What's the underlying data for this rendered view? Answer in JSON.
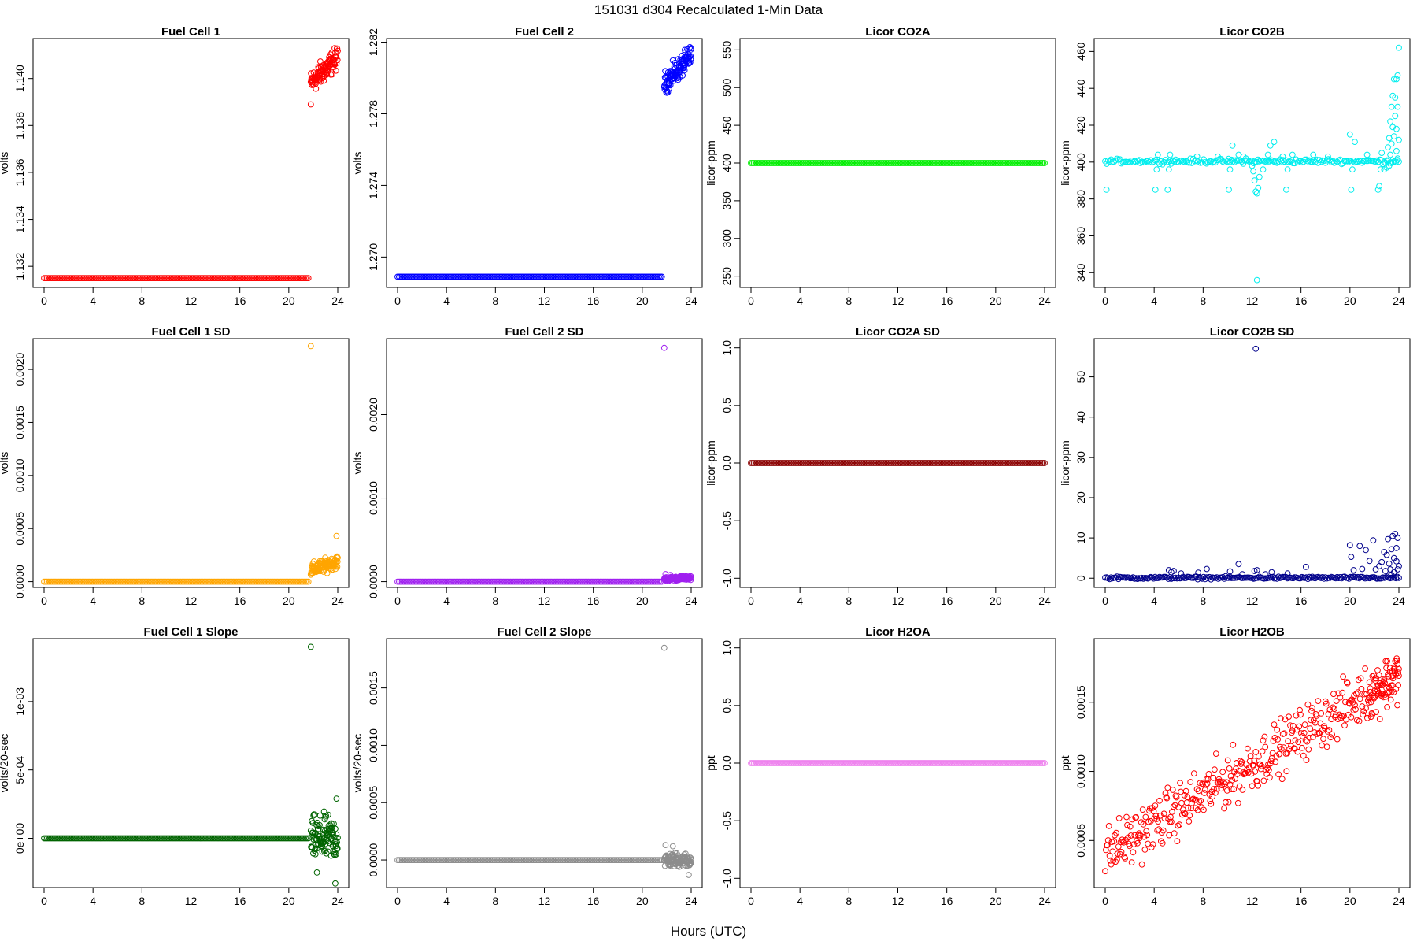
{
  "figure": {
    "title": "151031   d304   Recalculated 1-Min Data",
    "xlabel": "Hours (UTC)"
  },
  "chart_data": [
    {
      "type": "scatter",
      "title": "Fuel Cell 1",
      "ylabel": "volts",
      "color": "#ff0000",
      "xlim": [
        0,
        24
      ],
      "xticks": [
        0,
        4,
        8,
        12,
        16,
        20,
        24
      ],
      "ylim": [
        1.1311,
        1.1417
      ],
      "yticks": [
        1.132,
        1.134,
        1.136,
        1.138,
        1.14
      ],
      "yticklabels": [
        "1.132",
        "1.134",
        "1.136",
        "1.138",
        "1.140"
      ],
      "series": [
        {
          "pattern": "flat",
          "x_range": [
            0,
            21.7
          ],
          "y": 1.1315
        },
        {
          "pattern": "cloud",
          "x_range": [
            21.8,
            24
          ],
          "y_start": 1.1398,
          "y_end": 1.1409,
          "spread": 0.0004,
          "outliers": [
            [
              21.8,
              1.1389
            ]
          ]
        }
      ]
    },
    {
      "type": "scatter",
      "title": "Fuel Cell 2",
      "ylabel": "volts",
      "color": "#0000ff",
      "xlim": [
        0,
        24
      ],
      "xticks": [
        0,
        4,
        8,
        12,
        16,
        20,
        24
      ],
      "ylim": [
        1.2683,
        1.2822
      ],
      "yticks": [
        1.27,
        1.274,
        1.278,
        1.282
      ],
      "yticklabels": [
        "1.270",
        "1.274",
        "1.278",
        "1.282"
      ],
      "series": [
        {
          "pattern": "flat",
          "x_range": [
            0,
            21.7
          ],
          "y": 1.2689
        },
        {
          "pattern": "cloud",
          "x_range": [
            21.8,
            24
          ],
          "y_start": 1.2797,
          "y_end": 1.2812,
          "spread": 0.0005,
          "outliers": []
        }
      ]
    },
    {
      "type": "scatter",
      "title": "Licor CO2A",
      "ylabel": "licor-ppm",
      "color": "#00ee00",
      "xlim": [
        0,
        24
      ],
      "xticks": [
        0,
        4,
        8,
        12,
        16,
        20,
        24
      ],
      "ylim": [
        235,
        565
      ],
      "yticks": [
        250,
        300,
        350,
        400,
        450,
        500,
        550
      ],
      "yticklabels": [
        "250",
        "300",
        "350",
        "400",
        "450",
        "500",
        "550"
      ],
      "series": [
        {
          "pattern": "flat",
          "x_range": [
            0,
            24
          ],
          "y": 400
        }
      ]
    },
    {
      "type": "scatter",
      "title": "Licor CO2B",
      "ylabel": "licor-ppm",
      "color": "#00eeee",
      "xlim": [
        0,
        24
      ],
      "xticks": [
        0,
        4,
        8,
        12,
        16,
        20,
        24
      ],
      "ylim": [
        332,
        467
      ],
      "yticks": [
        340,
        360,
        380,
        400,
        420,
        440,
        460
      ],
      "yticklabels": [
        "340",
        "360",
        "380",
        "400",
        "420",
        "440",
        "460"
      ],
      "series": [
        {
          "pattern": "flat_jitter",
          "x_range": [
            0,
            24
          ],
          "y": 400.5,
          "spread": 0.6,
          "step": 0.12
        },
        {
          "pattern": "points",
          "points": [
            [
              0.1,
              385
            ],
            [
              4.1,
              385
            ],
            [
              4.2,
              396
            ],
            [
              4.3,
              404
            ],
            [
              5.1,
              385
            ],
            [
              5.2,
              396
            ],
            [
              5.3,
              404
            ],
            [
              5.5,
              401
            ],
            [
              7.5,
              403
            ],
            [
              9.2,
              403
            ],
            [
              10.1,
              385
            ],
            [
              10.2,
              396
            ],
            [
              10.4,
              409
            ],
            [
              10.9,
              404
            ],
            [
              11.3,
              403
            ],
            [
              11.5,
              402
            ],
            [
              12.0,
              398
            ],
            [
              12.1,
              395
            ],
            [
              12.2,
              390
            ],
            [
              12.3,
              384
            ],
            [
              12.4,
              383
            ],
            [
              12.5,
              386
            ],
            [
              12.6,
              392
            ],
            [
              12.9,
              396
            ],
            [
              13.3,
              404
            ],
            [
              13.5,
              409
            ],
            [
              13.8,
              411
            ],
            [
              14.5,
              403
            ],
            [
              14.8,
              385
            ],
            [
              14.9,
              396
            ],
            [
              15.3,
              404
            ],
            [
              17.0,
              404
            ],
            [
              18.2,
              403
            ],
            [
              20.0,
              415
            ],
            [
              20.1,
              385
            ],
            [
              20.2,
              396
            ],
            [
              20.4,
              411
            ],
            [
              21.4,
              404
            ],
            [
              22.3,
              385
            ],
            [
              22.4,
              387
            ],
            [
              22.5,
              396
            ],
            [
              22.6,
              405
            ],
            [
              22.8,
              396
            ],
            [
              23.0,
              397
            ],
            [
              23.0,
              401
            ],
            [
              23.1,
              408
            ],
            [
              23.2,
              413
            ],
            [
              23.2,
              398
            ],
            [
              23.3,
              404
            ],
            [
              23.3,
              422
            ],
            [
              23.4,
              430
            ],
            [
              23.4,
              410
            ],
            [
              23.5,
              436
            ],
            [
              23.5,
              419
            ],
            [
              23.6,
              445
            ],
            [
              23.6,
              414
            ],
            [
              23.7,
              425
            ],
            [
              23.7,
              435
            ],
            [
              23.8,
              418
            ],
            [
              23.8,
              445
            ],
            [
              23.9,
              447
            ],
            [
              23.9,
              430
            ],
            [
              24.0,
              462
            ],
            [
              24.0,
              412
            ],
            [
              23.9,
              402
            ],
            [
              23.8,
              406
            ],
            [
              12.4,
              336
            ]
          ]
        }
      ]
    },
    {
      "type": "scatter",
      "title": "Fuel Cell 1 SD",
      "ylabel": "volts",
      "color": "#ffa500",
      "xlim": [
        0,
        24
      ],
      "xticks": [
        0,
        4,
        8,
        12,
        16,
        20,
        24
      ],
      "ylim": [
        -5.5e-05,
        0.00229
      ],
      "yticks": [
        0.0,
        0.0005,
        0.001,
        0.0015,
        0.002
      ],
      "yticklabels": [
        "0.0000",
        "0.0005",
        "0.0010",
        "0.0015",
        "0.0020"
      ],
      "series": [
        {
          "pattern": "flat",
          "x_range": [
            0,
            21.7
          ],
          "y": 0.0
        },
        {
          "pattern": "cloud",
          "x_range": [
            21.8,
            24
          ],
          "y_start": 0.00011,
          "y_end": 0.00019,
          "spread": 5e-05,
          "outliers": [
            [
              21.8,
              0.00222
            ],
            [
              23.9,
              0.00043
            ]
          ]
        }
      ]
    },
    {
      "type": "scatter",
      "title": "Fuel Cell 2 SD",
      "ylabel": "volts",
      "color": "#a020f0",
      "xlim": [
        0,
        24
      ],
      "xticks": [
        0,
        4,
        8,
        12,
        16,
        20,
        24
      ],
      "ylim": [
        -7e-05,
        0.00291
      ],
      "yticks": [
        0.0,
        0.001,
        0.002
      ],
      "yticklabels": [
        "0.0000",
        "0.0010",
        "0.0020"
      ],
      "series": [
        {
          "pattern": "flat",
          "x_range": [
            0,
            21.7
          ],
          "y": 0.0
        },
        {
          "pattern": "cloud",
          "x_range": [
            21.8,
            24
          ],
          "y_start": 3e-05,
          "y_end": 5e-05,
          "spread": 2e-05,
          "outliers": [
            [
              21.8,
              0.0028
            ],
            [
              21.9,
              9e-05
            ],
            [
              22.3,
              8e-05
            ]
          ]
        }
      ]
    },
    {
      "type": "scatter",
      "title": "Licor CO2A SD",
      "ylabel": "licor-ppm",
      "color": "#8b0000",
      "xlim": [
        0,
        24
      ],
      "xticks": [
        0,
        4,
        8,
        12,
        16,
        20,
        24
      ],
      "ylim": [
        -1.08,
        1.08
      ],
      "yticks": [
        -1.0,
        -0.5,
        0.0,
        0.5,
        1.0
      ],
      "yticklabels": [
        "-1.0",
        "-0.5",
        "0.0",
        "0.5",
        "1.0"
      ],
      "series": [
        {
          "pattern": "flat",
          "x_range": [
            0,
            24
          ],
          "y": 0.0
        }
      ]
    },
    {
      "type": "scatter",
      "title": "Licor CO2B SD",
      "ylabel": "licor-ppm",
      "color": "#00008b",
      "xlim": [
        0,
        24
      ],
      "xticks": [
        0,
        4,
        8,
        12,
        16,
        20,
        24
      ],
      "ylim": [
        -2.3,
        59.5
      ],
      "yticks": [
        0,
        10,
        20,
        30,
        40,
        50
      ],
      "yticklabels": [
        "0",
        "10",
        "20",
        "30",
        "40",
        "50"
      ],
      "series": [
        {
          "pattern": "flat_jitter",
          "x_range": [
            0,
            24
          ],
          "y": 0.1,
          "spread": 0.15,
          "step": 0.12
        },
        {
          "pattern": "points",
          "points": [
            [
              12.3,
              57
            ],
            [
              5.2,
              2
            ],
            [
              5.4,
              1.5
            ],
            [
              5.6,
              1.8
            ],
            [
              6.2,
              1.2
            ],
            [
              7.6,
              1.4
            ],
            [
              8.3,
              2.3
            ],
            [
              10.2,
              1.7
            ],
            [
              10.9,
              3.5
            ],
            [
              11.2,
              1.0
            ],
            [
              12.2,
              1.8
            ],
            [
              12.4,
              2.0
            ],
            [
              13.1,
              1.0
            ],
            [
              13.6,
              1.5
            ],
            [
              14.9,
              1.2
            ],
            [
              16.4,
              2.8
            ],
            [
              20.0,
              8.2
            ],
            [
              20.1,
              5.3
            ],
            [
              20.3,
              2.0
            ],
            [
              20.8,
              8.0
            ],
            [
              21.0,
              2.3
            ],
            [
              21.3,
              7.0
            ],
            [
              21.6,
              4.3
            ],
            [
              21.9,
              9.4
            ],
            [
              22.1,
              2.2
            ],
            [
              22.4,
              3.0
            ],
            [
              22.6,
              4.0
            ],
            [
              22.8,
              6.5
            ],
            [
              22.9,
              1.8
            ],
            [
              23.0,
              5.8
            ],
            [
              23.1,
              9.7
            ],
            [
              23.2,
              3.6
            ],
            [
              23.3,
              2.2
            ],
            [
              23.4,
              7.2
            ],
            [
              23.5,
              10.5
            ],
            [
              23.6,
              5.0
            ],
            [
              23.7,
              11.0
            ],
            [
              23.8,
              4.2
            ],
            [
              23.9,
              10.0
            ],
            [
              24.0,
              3.0
            ],
            [
              23.8,
              7.5
            ],
            [
              23.6,
              1.5
            ],
            [
              23.4,
              0.8
            ],
            [
              23.9,
              2.2
            ]
          ]
        }
      ]
    },
    {
      "type": "scatter",
      "title": "Fuel Cell 1 Slope",
      "ylabel": "volts/20-sec",
      "color": "#006400",
      "xlim": [
        0,
        24
      ],
      "xticks": [
        0,
        4,
        8,
        12,
        16,
        20,
        24
      ],
      "ylim": [
        -0.00036,
        0.00146
      ],
      "yticks": [
        0.0,
        0.0005,
        0.001
      ],
      "yticklabels": [
        "0e+00",
        "5e-04",
        "1e-03"
      ],
      "series": [
        {
          "pattern": "flat",
          "x_range": [
            0,
            21.7
          ],
          "y": 0.0
        },
        {
          "pattern": "cloud",
          "x_range": [
            21.8,
            24
          ],
          "y_start": 0.0,
          "y_end": 0.0,
          "spread": 0.00013,
          "outliers": [
            [
              21.8,
              0.0014
            ],
            [
              23.9,
              0.00029
            ],
            [
              23.8,
              -0.00033
            ],
            [
              22.3,
              -0.00025
            ]
          ]
        }
      ]
    },
    {
      "type": "scatter",
      "title": "Fuel Cell 2 Slope",
      "ylabel": "volts/20-sec",
      "color": "#8c8c8c",
      "xlim": [
        0,
        24
      ],
      "xticks": [
        0,
        4,
        8,
        12,
        16,
        20,
        24
      ],
      "ylim": [
        -0.00024,
        0.00193
      ],
      "yticks": [
        0.0,
        0.0005,
        0.001,
        0.0015
      ],
      "yticklabels": [
        "0.0000",
        "0.0005",
        "0.0010",
        "0.0015"
      ],
      "series": [
        {
          "pattern": "flat",
          "x_range": [
            0,
            21.7
          ],
          "y": 0.0
        },
        {
          "pattern": "cloud",
          "x_range": [
            21.8,
            24
          ],
          "y_start": 0.0,
          "y_end": 0.0,
          "spread": 5e-05,
          "outliers": [
            [
              21.8,
              0.00185
            ],
            [
              21.9,
              0.00013
            ],
            [
              22.5,
              0.00012
            ],
            [
              23.8,
              -0.00013
            ]
          ]
        }
      ]
    },
    {
      "type": "scatter",
      "title": "Licor H2OA",
      "ylabel": "ppt",
      "color": "#ee82ee",
      "xlim": [
        0,
        24
      ],
      "xticks": [
        0,
        4,
        8,
        12,
        16,
        20,
        24
      ],
      "ylim": [
        -1.08,
        1.08
      ],
      "yticks": [
        -1.0,
        -0.5,
        0.0,
        0.5,
        1.0
      ],
      "yticklabels": [
        "-1.0",
        "-0.5",
        "0.0",
        "0.5",
        "1.0"
      ],
      "series": [
        {
          "pattern": "flat",
          "x_range": [
            0,
            24
          ],
          "y": 0.0
        }
      ]
    },
    {
      "type": "scatter",
      "title": "Licor H2OB",
      "ylabel": "ppt",
      "color": "#ff0000",
      "xlim": [
        0,
        24
      ],
      "xticks": [
        0,
        4,
        8,
        12,
        16,
        20,
        24
      ],
      "ylim": [
        0.00016,
        0.00196
      ],
      "yticks": [
        0.0005,
        0.001,
        0.0015
      ],
      "yticklabels": [
        "0.0005",
        "0.0010",
        "0.0015"
      ],
      "series": [
        {
          "pattern": "trend_cloud",
          "x_range": [
            0,
            24
          ],
          "y_start": 0.0004,
          "y_end": 0.0017,
          "spread": 0.00017,
          "step": 0.06
        }
      ]
    }
  ]
}
